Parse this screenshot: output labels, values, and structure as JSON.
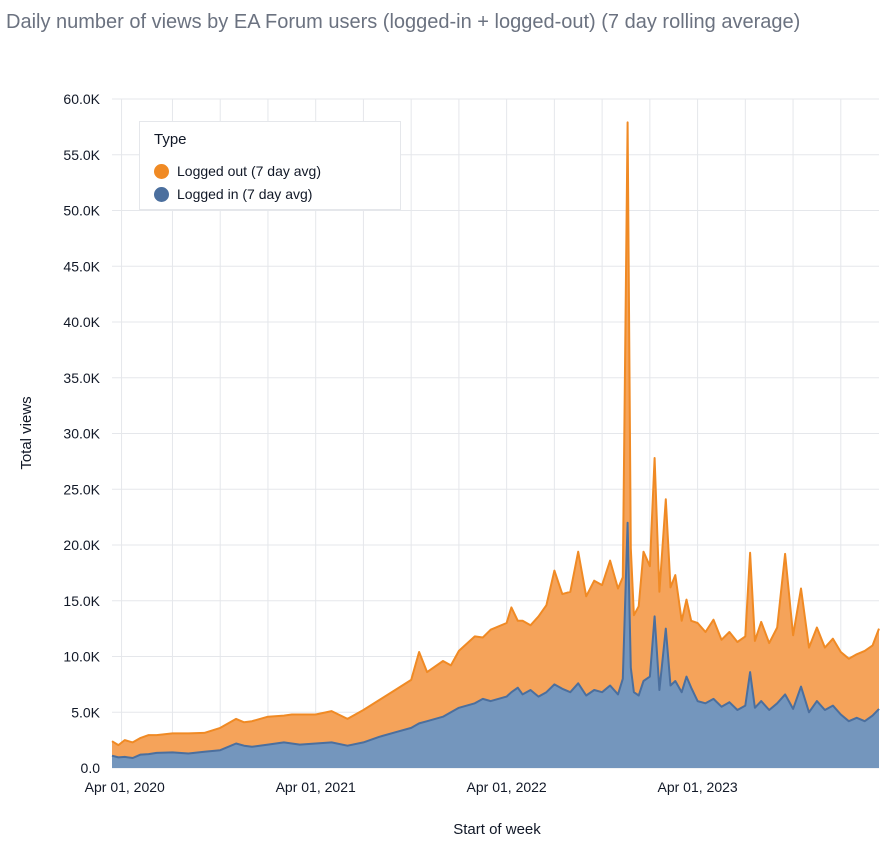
{
  "title": "Daily number of views by EA Forum users (logged-in + logged-out) (7 day rolling average)",
  "chart_data": {
    "type": "area",
    "stacked": true,
    "title": "Daily number of views by EA Forum users (logged-in + logged-out) (7 day rolling average)",
    "xlabel": "Start of week",
    "ylabel": "Total views",
    "ylim": [
      0,
      60000
    ],
    "yticks": [
      0,
      5000,
      10000,
      15000,
      20000,
      25000,
      30000,
      35000,
      40000,
      45000,
      50000,
      55000,
      60000
    ],
    "ytick_labels": [
      "0.0",
      "5.0K",
      "10.0K",
      "15.0K",
      "20.0K",
      "25.0K",
      "30.0K",
      "35.0K",
      "40.0K",
      "45.0K",
      "50.0K",
      "55.0K",
      "60.0K"
    ],
    "xlim_month": [
      -0.8,
      47.4
    ],
    "xtick_month": [
      0,
      12,
      24,
      36
    ],
    "xtick_labels": [
      "Apr 01, 2020",
      "Apr 01, 2021",
      "Apr 01, 2022",
      "Apr 01, 2023"
    ],
    "xgrid_month": [
      -0.2,
      3,
      6,
      9,
      12,
      15,
      18,
      21,
      24,
      27,
      30,
      33,
      36,
      39,
      42,
      45
    ],
    "grid": true,
    "legend": {
      "title": "Type",
      "position": "top-left",
      "entries": [
        "Logged out (7 day avg)",
        "Logged in (7 day avg)"
      ]
    },
    "colors": {
      "logged_out_fill": "#f5a35a",
      "logged_out_line": "#f08a24",
      "logged_in_fill": "#7496bd",
      "logged_in_line": "#4b6f9e",
      "grid": "#e5e7eb"
    },
    "x_month": [
      -0.8,
      -0.4,
      0,
      0.5,
      1,
      1.5,
      2,
      3,
      4,
      5,
      6,
      7,
      7.5,
      8,
      9,
      10,
      10.5,
      11,
      12,
      13,
      14,
      15,
      16,
      17,
      18,
      18.5,
      19,
      20,
      20.5,
      21,
      22,
      22.5,
      23,
      24,
      24.3,
      24.7,
      25,
      25.5,
      26,
      26.5,
      27,
      27.5,
      28,
      28.5,
      29,
      29.5,
      30,
      30.5,
      31,
      31.3,
      31.6,
      31.8,
      32,
      32.3,
      32.6,
      33,
      33.3,
      33.6,
      34,
      34.3,
      34.6,
      35,
      35.3,
      35.6,
      36,
      36.5,
      37,
      37.5,
      38,
      38.5,
      39,
      39.3,
      39.6,
      40,
      40.5,
      41,
      41.5,
      42,
      42.5,
      43,
      43.5,
      44,
      44.5,
      45,
      45.5,
      46,
      46.5,
      47,
      47.4
    ],
    "series": [
      {
        "name": "Logged in (7 day avg)",
        "values": [
          1100,
          950,
          1000,
          900,
          1200,
          1250,
          1350,
          1400,
          1300,
          1450,
          1600,
          2200,
          2000,
          1900,
          2100,
          2300,
          2200,
          2100,
          2200,
          2300,
          2000,
          2300,
          2800,
          3200,
          3600,
          4000,
          4200,
          4600,
          5000,
          5400,
          5800,
          6200,
          6000,
          6400,
          6800,
          7200,
          6600,
          7000,
          6400,
          6800,
          7500,
          7100,
          6800,
          7600,
          6500,
          7000,
          6800,
          7400,
          6600,
          8000,
          22000,
          9000,
          6800,
          6500,
          7800,
          8200,
          13600,
          7000,
          12500,
          7400,
          7800,
          6800,
          8200,
          7200,
          6000,
          5800,
          6200,
          5500,
          5900,
          5200,
          5600,
          8600,
          5400,
          6000,
          5200,
          5800,
          6600,
          5300,
          7300,
          5000,
          6000,
          5200,
          5600,
          4800,
          4200,
          4500,
          4200,
          4700,
          5300
        ]
      },
      {
        "name": "Logged out (7 day avg)",
        "values": [
          1300,
          1100,
          1500,
          1400,
          1500,
          1700,
          1600,
          1700,
          1800,
          1700,
          2000,
          2200,
          2100,
          2300,
          2500,
          2400,
          2600,
          2700,
          2600,
          2800,
          2400,
          2900,
          3300,
          3800,
          4300,
          6400,
          4400,
          5000,
          4200,
          5100,
          6000,
          5500,
          6400,
          6600,
          7600,
          6000,
          6600,
          5800,
          7200,
          7800,
          10200,
          8500,
          9000,
          11800,
          8900,
          9800,
          9600,
          11200,
          9500,
          9100,
          35900,
          10700,
          6900,
          8000,
          11600,
          9900,
          14200,
          8800,
          11600,
          8800,
          9500,
          6400,
          6900,
          6000,
          7000,
          6400,
          7100,
          6000,
          6300,
          6100,
          6200,
          10700,
          6000,
          7100,
          6000,
          6800,
          12600,
          6600,
          8800,
          5800,
          6600,
          5600,
          6000,
          5600,
          5600,
          5700,
          6300,
          6300,
          7200
        ]
      }
    ]
  }
}
